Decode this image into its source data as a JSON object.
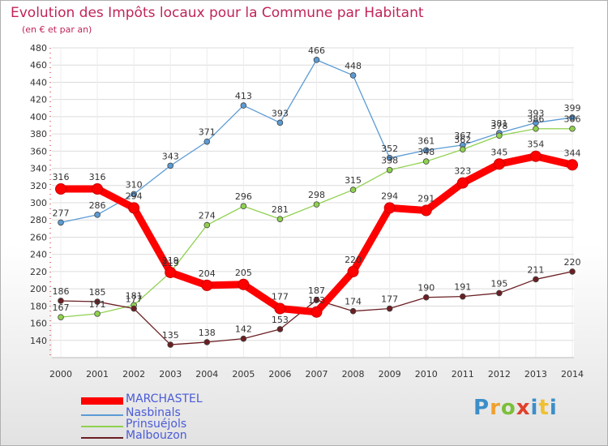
{
  "chart_data": {
    "type": "line",
    "title": "Evolution des Impôts locaux pour la Commune par Habitant",
    "subtitle": "(en € et par an)",
    "x": [
      "2000",
      "2001",
      "2002",
      "2003",
      "2004",
      "2005",
      "2006",
      "2007",
      "2008",
      "2009",
      "2010",
      "2011",
      "2012",
      "2013",
      "2014"
    ],
    "ylim": [
      120,
      480
    ],
    "yticks": [
      "140",
      "160",
      "180",
      "200",
      "220",
      "240",
      "260",
      "280",
      "300",
      "320",
      "340",
      "360",
      "380",
      "400",
      "420",
      "440",
      "460",
      "480"
    ],
    "series": [
      {
        "name": "MARCHASTEL",
        "color": "#ff0000",
        "values": [
          316,
          316,
          294,
          219,
          204,
          205,
          177,
          173,
          220,
          294,
          291,
          323,
          345,
          354,
          344
        ],
        "labels": [
          "316",
          "316",
          "294",
          "219",
          "204",
          "205",
          "177",
          "173",
          "220",
          "294",
          "291",
          "323",
          "345",
          "354",
          "344"
        ]
      },
      {
        "name": "Nasbinals",
        "color": "#5b9bd5",
        "values": [
          277,
          286,
          310,
          343,
          371,
          413,
          393,
          466,
          448,
          352,
          361,
          367,
          381,
          393,
          399
        ],
        "labels": [
          "277",
          "286",
          "310",
          "343",
          "371",
          "413",
          "393",
          "466",
          "448",
          "352",
          "361",
          "367",
          "381",
          "393",
          "399"
        ]
      },
      {
        "name": "Prinsuéjols",
        "color": "#8fd14f",
        "values": [
          167,
          171,
          181,
          219,
          274,
          296,
          281,
          298,
          315,
          338,
          348,
          362,
          378,
          386,
          386
        ],
        "labels": [
          "167",
          "171",
          "181",
          "219",
          "274",
          "296",
          "281",
          "298",
          "315",
          "338",
          "348",
          "362",
          "378",
          "386",
          "386"
        ]
      },
      {
        "name": "Malbouzon",
        "color": "#6b1f23",
        "values": [
          186,
          185,
          177,
          135,
          138,
          142,
          153,
          187,
          174,
          177,
          190,
          191,
          195,
          211,
          220
        ],
        "labels": [
          "186",
          "185",
          "177",
          "135",
          "138",
          "142",
          "153",
          "187",
          "174",
          "177",
          "190",
          "191",
          "195",
          "211",
          "220"
        ]
      }
    ]
  },
  "logo": {
    "letters": [
      "P",
      "r",
      "o",
      "x",
      "i",
      "t",
      "i"
    ]
  }
}
